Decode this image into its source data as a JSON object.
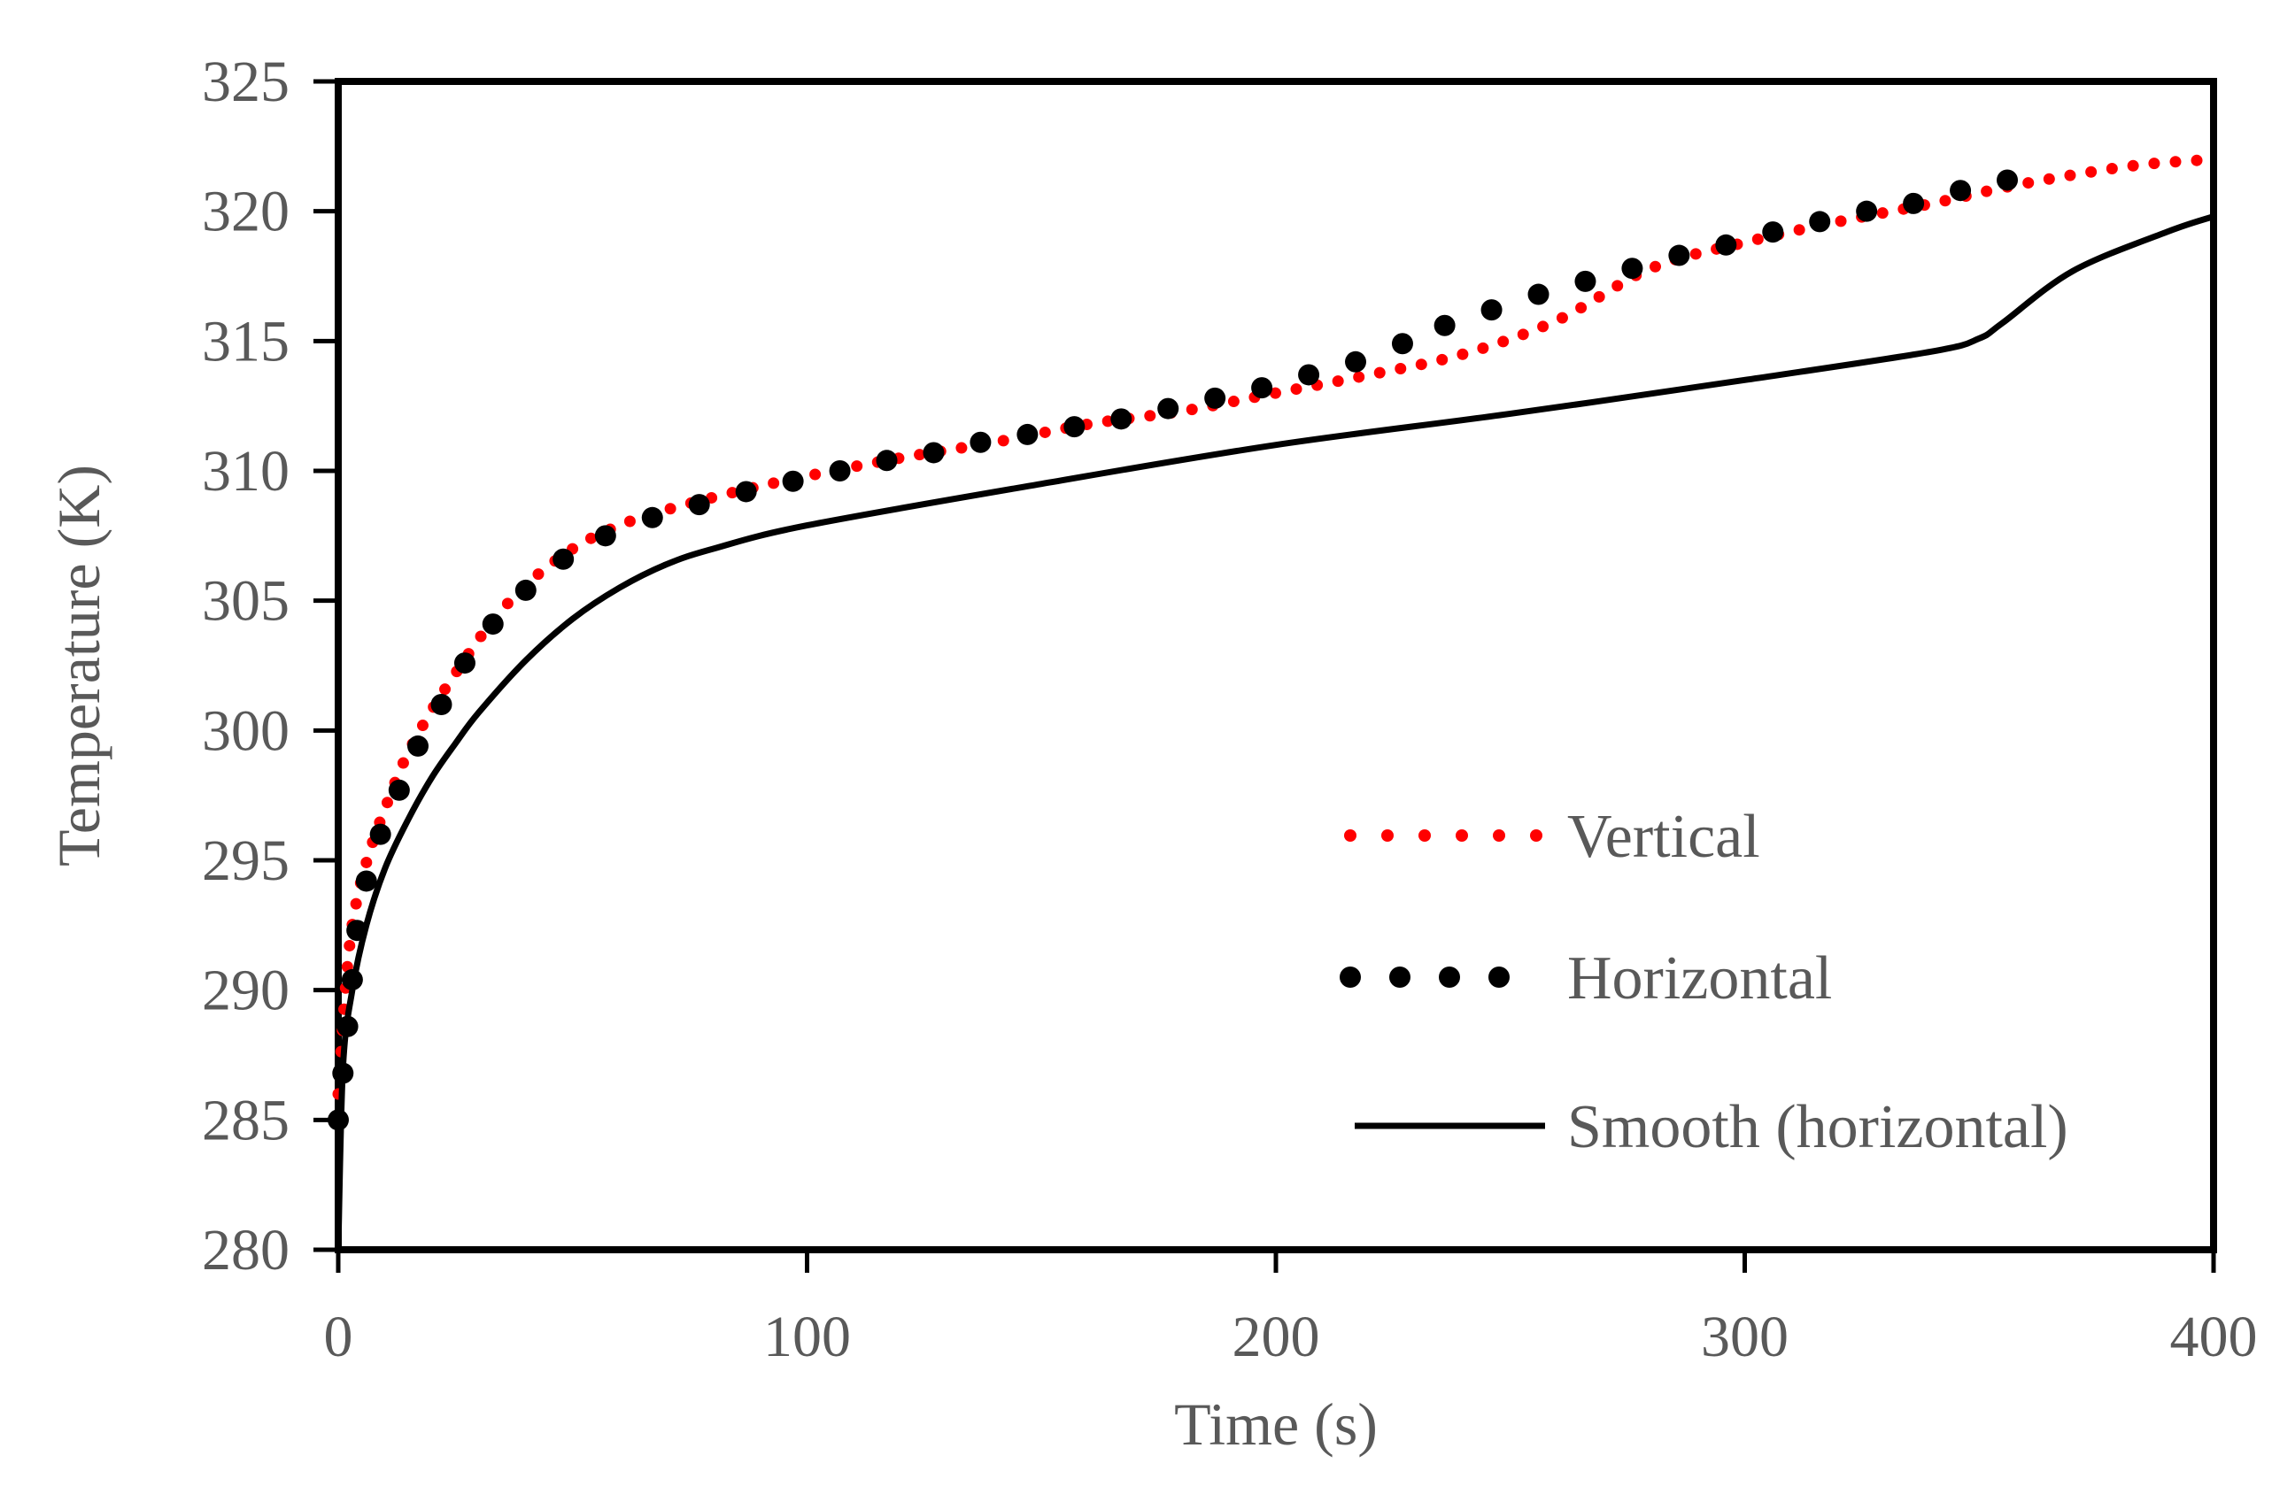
{
  "chart_data": {
    "type": "line",
    "title": "",
    "xlabel": "Time (s)",
    "ylabel": "Temperature (K)",
    "xlim": [
      0,
      400
    ],
    "ylim": [
      280,
      325
    ],
    "xticks": [
      0,
      100,
      200,
      300,
      400
    ],
    "yticks": [
      280,
      285,
      290,
      295,
      300,
      305,
      310,
      315,
      320,
      325
    ],
    "grid": false,
    "legend_position": "bottom-right",
    "series": [
      {
        "name": "Vertical",
        "style": "dotted",
        "color": "#ff0000",
        "x": [
          0,
          2,
          4,
          7,
          10,
          14,
          19,
          25,
          32,
          40,
          50,
          60,
          70,
          85,
          100,
          120,
          140,
          160,
          180,
          200,
          220,
          240,
          260,
          280,
          300,
          320,
          340,
          355,
          370,
          385,
          400
        ],
        "y": [
          286,
          291,
          293.5,
          295.5,
          297,
          298.8,
          300.5,
          302.2,
          304,
          305.6,
          307,
          307.9,
          308.5,
          309.2,
          309.8,
          310.5,
          311.1,
          311.8,
          312.3,
          313,
          313.7,
          314.5,
          315.8,
          317.8,
          318.8,
          319.6,
          320.3,
          320.9,
          321.4,
          321.8,
          322
        ]
      },
      {
        "name": "Horizontal",
        "style": "large-dots",
        "color": "#000000",
        "x": [
          0,
          1,
          2,
          3,
          4,
          6,
          9,
          13,
          17,
          22,
          27,
          33,
          40,
          48,
          57,
          67,
          77,
          87,
          97,
          107,
          117,
          127,
          137,
          147,
          157,
          167,
          177,
          187,
          197,
          207,
          217,
          227,
          236,
          246,
          256,
          266,
          276,
          286,
          296,
          306,
          316,
          326,
          336,
          346,
          356
        ],
        "y": [
          285,
          286.8,
          288.6,
          290.4,
          292.3,
          294.2,
          296,
          297.7,
          299.4,
          301,
          302.6,
          304.1,
          305.4,
          306.6,
          307.5,
          308.2,
          308.7,
          309.2,
          309.6,
          310,
          310.4,
          310.7,
          311.1,
          311.4,
          311.7,
          312,
          312.4,
          312.8,
          313.2,
          313.7,
          314.2,
          314.9,
          315.6,
          316.2,
          316.8,
          317.3,
          317.8,
          318.3,
          318.7,
          319.2,
          319.6,
          320,
          320.3,
          320.8,
          321.2
        ]
      },
      {
        "name": "Smooth (horizontal)",
        "style": "solid",
        "color": "#000000",
        "x": [
          0,
          1,
          3,
          6,
          10,
          15,
          20,
          25,
          30,
          40,
          50,
          60,
          70,
          80,
          100,
          150,
          200,
          250,
          300,
          340,
          350,
          355,
          370,
          390,
          400
        ],
        "y": [
          280,
          287,
          290,
          292.5,
          294.7,
          296.6,
          298.2,
          299.5,
          300.7,
          302.7,
          304.3,
          305.5,
          306.4,
          307,
          307.9,
          309.5,
          311,
          312.2,
          313.5,
          314.6,
          315.1,
          315.7,
          317.7,
          319.2,
          319.8
        ]
      }
    ]
  }
}
